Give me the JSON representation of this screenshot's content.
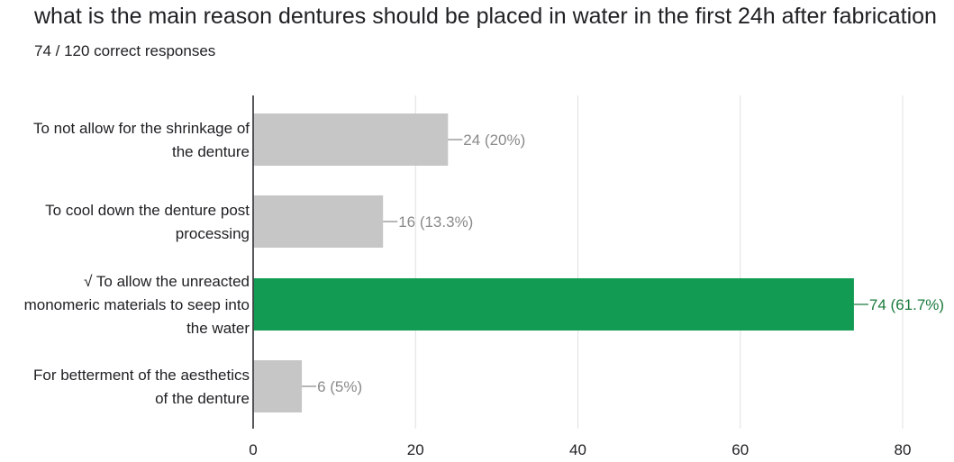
{
  "question": {
    "title": "what is the main reason dentures should be placed in water in the first 24h after fabrication",
    "subtitle": "74 / 120 correct responses"
  },
  "colors": {
    "bar_default": "#c6c6c6",
    "bar_correct": "#129c53",
    "label_default": "#8a8a8a",
    "label_correct": "#1b7a3c",
    "grid": "#e0e0e0",
    "axis": "#202124"
  },
  "chart_data": {
    "type": "bar",
    "orientation": "horizontal",
    "categories": [
      {
        "lines": [
          "To not allow for the shrinkage of",
          "the denture"
        ],
        "correct": false
      },
      {
        "lines": [
          "To cool down the denture post",
          "processing"
        ],
        "correct": false
      },
      {
        "lines": [
          "√ To allow the unreacted",
          "monomeric materials to seep into",
          "the water"
        ],
        "correct": true
      },
      {
        "lines": [
          "For betterment of the aesthetics",
          "of the denture"
        ],
        "correct": false
      }
    ],
    "values": [
      24,
      16,
      74,
      6
    ],
    "data_labels": [
      "24 (20%)",
      "16 (13.3%)",
      "74 (61.7%)",
      "6 (5%)"
    ],
    "xlim": [
      0,
      80
    ],
    "xticks": [
      0,
      20,
      40,
      60,
      80
    ],
    "grid": true,
    "xlabel": "",
    "ylabel": ""
  }
}
